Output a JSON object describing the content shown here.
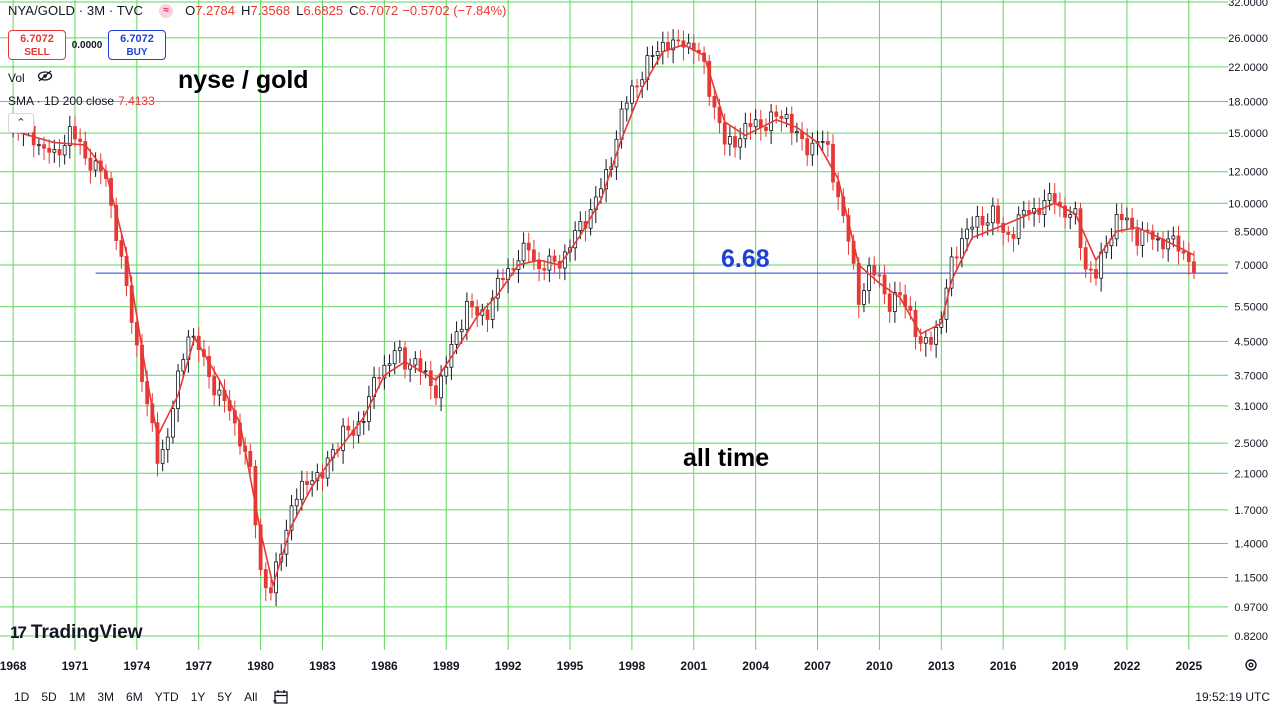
{
  "header": {
    "symbol": "NYA/GOLD · 3M · TVC",
    "indicator_badge": "≈",
    "open_label": "O",
    "open": "7.2784",
    "high_label": "H",
    "high": "7.3568",
    "low_label": "L",
    "low": "6.6825",
    "close_label": "C",
    "close": "6.7072",
    "change": "−0.5702 (−7.84%)"
  },
  "trade": {
    "sell_price": "6.7072",
    "sell_label": "SELL",
    "spread": "0.0000",
    "buy_price": "6.7072",
    "buy_label": "BUY"
  },
  "legend": {
    "vol_label": "Vol",
    "sma_label": "SMA · 1D 200 close",
    "sma_value": "7.4133",
    "collapse_glyph": "⌃"
  },
  "annotations": {
    "title": "nyse / gold",
    "subtitle": "all time",
    "level_label": "6.68"
  },
  "branding": {
    "logo_mark": "17",
    "logo_text": "TradingView"
  },
  "toolbar": {
    "ranges": [
      "1D",
      "5D",
      "1M",
      "3M",
      "6M",
      "YTD",
      "1Y",
      "5Y",
      "All"
    ],
    "clock": "19:52:19 UTC",
    "settings_icon": "gear-icon",
    "calendar_icon": "calendar-icon"
  },
  "colors": {
    "grid": "#5ed65e",
    "up": "#131722",
    "down": "#e53935",
    "sma": "#e53935",
    "level_line": "#1e3fd8",
    "accent_sell": "#e53935",
    "accent_buy": "#1e3fd8"
  },
  "chart_data": {
    "type": "candlestick",
    "title": "nyse / gold",
    "scale": "log",
    "interval": "3M",
    "x_tick_labels": [
      "1968",
      "1971",
      "1974",
      "1977",
      "1980",
      "1983",
      "1986",
      "1989",
      "1992",
      "1995",
      "1998",
      "2001",
      "2004",
      "2007",
      "2010",
      "2013",
      "2016",
      "2019",
      "2022",
      "2025"
    ],
    "y_tick_labels": [
      "32.0000",
      "26.0000",
      "22.0000",
      "18.0000",
      "15.0000",
      "12.0000",
      "10.0000",
      "8.5000",
      "7.0000",
      "5.5000",
      "4.5000",
      "3.7000",
      "3.1000",
      "2.5000",
      "2.1000",
      "1.7000",
      "1.4000",
      "1.1500",
      "0.9700",
      "0.8200"
    ],
    "y_ticks": [
      32,
      26,
      22,
      18,
      15,
      12,
      10,
      8.5,
      7,
      5.5,
      4.5,
      3.7,
      3.1,
      2.5,
      2.1,
      1.7,
      1.4,
      1.15,
      0.97,
      0.82
    ],
    "ylim": [
      0.78,
      32
    ],
    "xlim": [
      1967.85,
      2026.9
    ],
    "horizontal_level": {
      "value": 6.68,
      "label": "6.68",
      "start_year": 1972.0
    },
    "series_close": [
      [
        1968.0,
        15.8
      ],
      [
        1969.0,
        14.6
      ],
      [
        1970.0,
        13.0
      ],
      [
        1970.75,
        15.2
      ],
      [
        1971.5,
        13.2
      ],
      [
        1972.5,
        11.5
      ],
      [
        1973.0,
        8.5
      ],
      [
        1973.5,
        6.0
      ],
      [
        1974.0,
        4.4
      ],
      [
        1974.5,
        3.1
      ],
      [
        1975.0,
        2.3
      ],
      [
        1975.5,
        2.6
      ],
      [
        1976.0,
        3.6
      ],
      [
        1976.5,
        4.8
      ],
      [
        1977.0,
        4.3
      ],
      [
        1977.5,
        3.7
      ],
      [
        1978.0,
        3.3
      ],
      [
        1978.5,
        3.0
      ],
      [
        1979.0,
        2.6
      ],
      [
        1979.5,
        2.1
      ],
      [
        1980.0,
        1.2
      ],
      [
        1980.5,
        1.05
      ],
      [
        1981.0,
        1.35
      ],
      [
        1981.5,
        1.75
      ],
      [
        1982.0,
        1.9
      ],
      [
        1982.5,
        2.1
      ],
      [
        1983.0,
        2.05
      ],
      [
        1983.5,
        2.4
      ],
      [
        1984.0,
        2.7
      ],
      [
        1984.5,
        2.6
      ],
      [
        1985.0,
        3.0
      ],
      [
        1985.5,
        3.5
      ],
      [
        1986.0,
        3.9
      ],
      [
        1986.5,
        4.3
      ],
      [
        1987.0,
        3.9
      ],
      [
        1987.5,
        4.1
      ],
      [
        1988.0,
        3.6
      ],
      [
        1988.5,
        3.4
      ],
      [
        1989.0,
        3.9
      ],
      [
        1989.5,
        4.7
      ],
      [
        1990.0,
        5.6
      ],
      [
        1990.5,
        5.2
      ],
      [
        1991.0,
        5.4
      ],
      [
        1991.5,
        6.2
      ],
      [
        1992.0,
        6.8
      ],
      [
        1992.5,
        7.3
      ],
      [
        1993.0,
        7.7
      ],
      [
        1993.5,
        6.9
      ],
      [
        1994.0,
        7.0
      ],
      [
        1994.5,
        7.2
      ],
      [
        1995.0,
        7.8
      ],
      [
        1995.5,
        8.8
      ],
      [
        1996.0,
        9.6
      ],
      [
        1996.5,
        10.8
      ],
      [
        1997.0,
        13.0
      ],
      [
        1997.5,
        16.5
      ],
      [
        1998.0,
        19.5
      ],
      [
        1998.5,
        21.0
      ],
      [
        1999.0,
        23.5
      ],
      [
        1999.5,
        25.5
      ],
      [
        2000.0,
        24.5
      ],
      [
        2000.5,
        25.8
      ],
      [
        2001.0,
        24.5
      ],
      [
        2001.5,
        22.0
      ],
      [
        2002.0,
        17.5
      ],
      [
        2002.5,
        14.0
      ],
      [
        2003.0,
        14.5
      ],
      [
        2003.5,
        15.2
      ],
      [
        2004.0,
        16.0
      ],
      [
        2004.5,
        15.8
      ],
      [
        2005.0,
        16.4
      ],
      [
        2005.5,
        16.8
      ],
      [
        2006.0,
        14.5
      ],
      [
        2006.5,
        13.8
      ],
      [
        2007.0,
        14.5
      ],
      [
        2007.5,
        13.5
      ],
      [
        2008.0,
        10.5
      ],
      [
        2008.5,
        8.0
      ],
      [
        2009.0,
        5.8
      ],
      [
        2009.5,
        6.7
      ],
      [
        2010.0,
        6.5
      ],
      [
        2010.5,
        5.6
      ],
      [
        2011.0,
        5.8
      ],
      [
        2011.5,
        5.4
      ],
      [
        2012.0,
        4.3
      ],
      [
        2012.5,
        4.6
      ],
      [
        2013.0,
        5.2
      ],
      [
        2013.5,
        7.0
      ],
      [
        2014.0,
        8.3
      ],
      [
        2014.5,
        8.7
      ],
      [
        2015.0,
        9.1
      ],
      [
        2015.5,
        9.5
      ],
      [
        2016.0,
        8.3
      ],
      [
        2016.5,
        8.6
      ],
      [
        2017.0,
        9.4
      ],
      [
        2017.5,
        9.7
      ],
      [
        2018.0,
        9.9
      ],
      [
        2018.5,
        10.4
      ],
      [
        2019.0,
        9.4
      ],
      [
        2019.5,
        9.2
      ],
      [
        2020.0,
        7.0
      ],
      [
        2020.5,
        6.5
      ],
      [
        2021.0,
        8.0
      ],
      [
        2021.5,
        9.1
      ],
      [
        2022.0,
        9.0
      ],
      [
        2022.5,
        8.3
      ],
      [
        2023.0,
        8.3
      ],
      [
        2023.5,
        8.1
      ],
      [
        2024.0,
        8.0
      ],
      [
        2024.5,
        7.8
      ],
      [
        2025.0,
        7.28
      ],
      [
        2025.25,
        6.71
      ]
    ],
    "sma_200d_close_approx": [
      [
        1968.0,
        15.2
      ],
      [
        1970.0,
        14.2
      ],
      [
        1971.5,
        14.0
      ],
      [
        1972.5,
        12.0
      ],
      [
        1973.5,
        7.5
      ],
      [
        1974.5,
        3.6
      ],
      [
        1975.0,
        2.6
      ],
      [
        1976.0,
        3.3
      ],
      [
        1976.8,
        4.6
      ],
      [
        1978.0,
        3.6
      ],
      [
        1979.0,
        2.8
      ],
      [
        1980.0,
        1.5
      ],
      [
        1980.6,
        1.1
      ],
      [
        1981.5,
        1.55
      ],
      [
        1982.5,
        1.95
      ],
      [
        1983.5,
        2.3
      ],
      [
        1985.0,
        2.9
      ],
      [
        1986.0,
        3.7
      ],
      [
        1987.0,
        4.0
      ],
      [
        1988.5,
        3.6
      ],
      [
        1989.5,
        4.3
      ],
      [
        1990.5,
        5.2
      ],
      [
        1991.5,
        5.9
      ],
      [
        1992.5,
        7.0
      ],
      [
        1993.5,
        7.2
      ],
      [
        1994.5,
        7.0
      ],
      [
        1995.5,
        8.3
      ],
      [
        1996.5,
        10.2
      ],
      [
        1997.5,
        14.5
      ],
      [
        1998.5,
        19.5
      ],
      [
        1999.5,
        24.0
      ],
      [
        2000.5,
        25.0
      ],
      [
        2001.5,
        23.5
      ],
      [
        2002.5,
        16.0
      ],
      [
        2003.5,
        14.8
      ],
      [
        2005.0,
        16.2
      ],
      [
        2006.0,
        15.5
      ],
      [
        2007.0,
        14.2
      ],
      [
        2008.0,
        11.5
      ],
      [
        2009.0,
        7.0
      ],
      [
        2010.0,
        6.3
      ],
      [
        2011.0,
        5.8
      ],
      [
        2012.0,
        4.7
      ],
      [
        2013.0,
        5.0
      ],
      [
        2013.5,
        6.4
      ],
      [
        2014.5,
        8.2
      ],
      [
        2016.0,
        8.8
      ],
      [
        2017.5,
        9.5
      ],
      [
        2018.5,
        10.0
      ],
      [
        2019.5,
        9.4
      ],
      [
        2020.5,
        7.2
      ],
      [
        2021.5,
        8.5
      ],
      [
        2022.5,
        8.7
      ],
      [
        2024.0,
        8.0
      ],
      [
        2025.25,
        7.41
      ]
    ],
    "last_price": 6.7072,
    "sma_last": 7.4133
  }
}
